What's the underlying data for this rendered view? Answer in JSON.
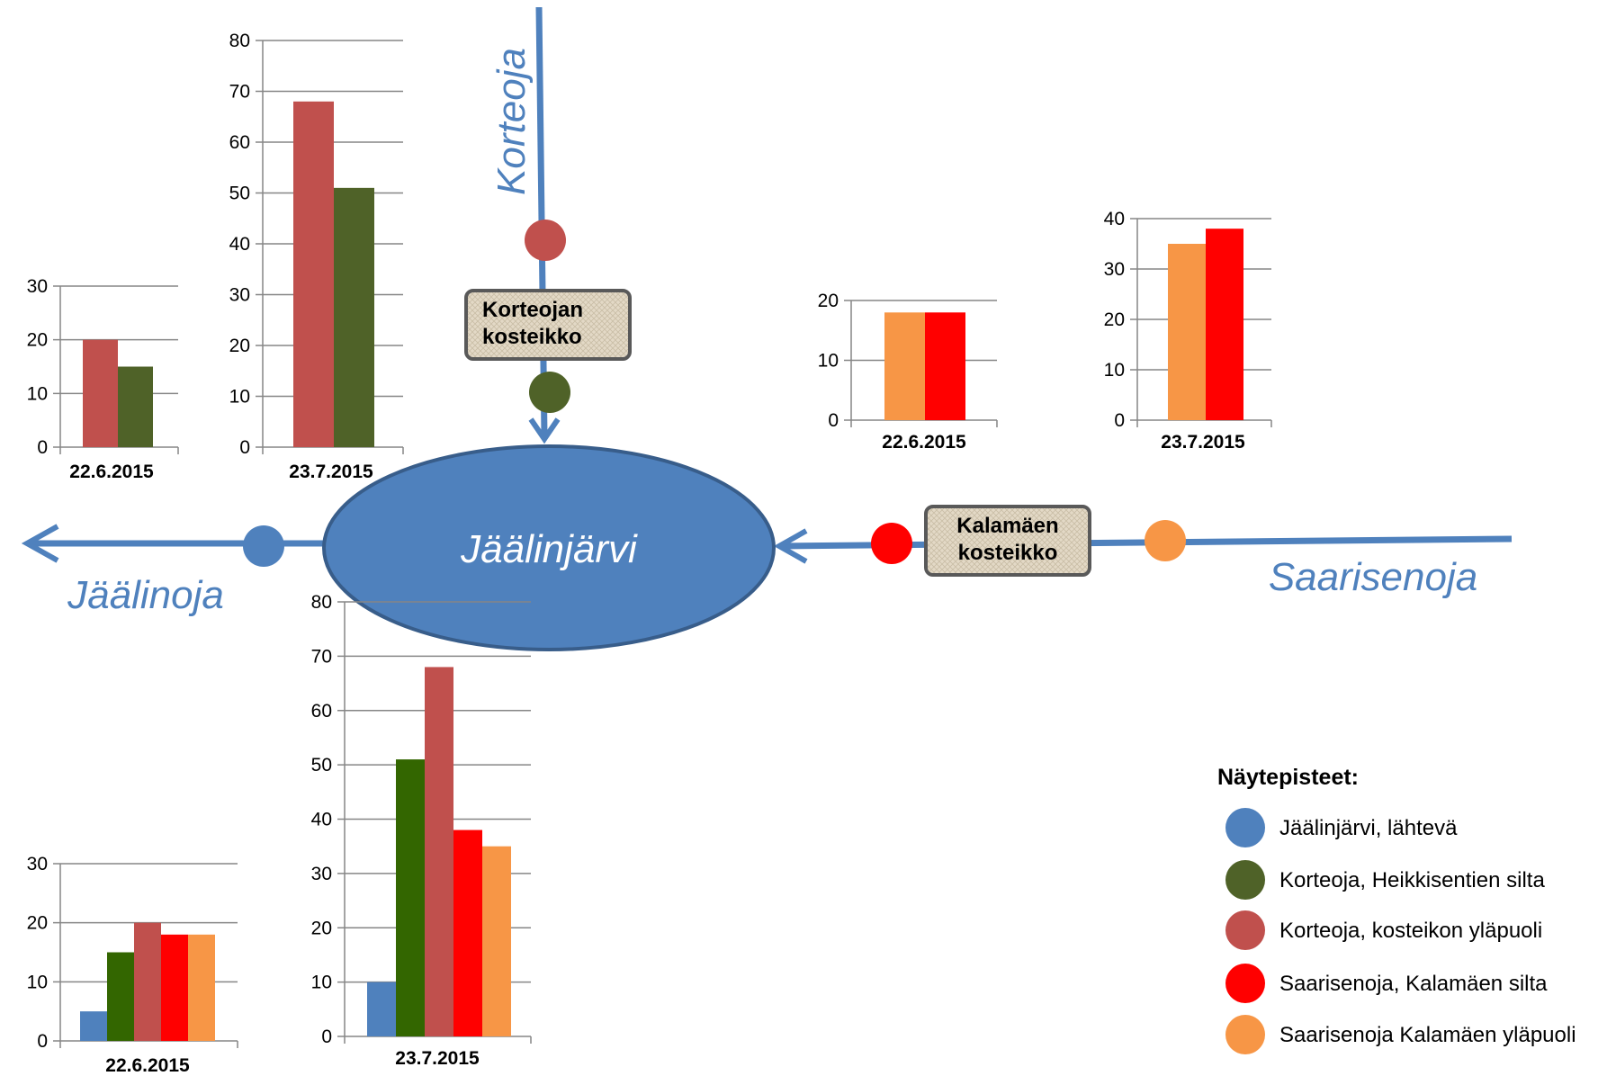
{
  "map": {
    "lake_label": "Jäälinjärvi",
    "rivers": {
      "korteoja": "Korteoja",
      "jaalinoja": "Jäälinoja",
      "saarisenoja": "Saarisenoja"
    },
    "wetlands": {
      "korteojan": [
        "Korteojan",
        "kosteikko"
      ],
      "kalamaen": [
        "Kalamäen",
        "kosteikko"
      ]
    },
    "colors": {
      "water": "#4f81bd",
      "lake_fill": "#4f81bd",
      "wetland_fill": "#e3d9c6",
      "wetland_border": "#595959"
    }
  },
  "legend": {
    "title": "Näytepisteet:",
    "items": [
      {
        "label": "Jäälinjärvi, lähtevä",
        "color": "#4f81bd"
      },
      {
        "label": "Korteoja, Heikkisentien silta",
        "color": "#4f6228"
      },
      {
        "label": "Korteoja, kosteikon yläpuoli",
        "color": "#c0504d"
      },
      {
        "label": "Saarisenoja, Kalamäen silta",
        "color": "#ff0000"
      },
      {
        "label": "Saarisenoja Kalamäen yläpuoli",
        "color": "#f79646"
      }
    ]
  },
  "chart_data": [
    {
      "type": "bar",
      "xlabel": "22.6.2015",
      "ylim": [
        0,
        30
      ],
      "yticks": [
        0,
        10,
        20,
        30
      ],
      "series": [
        {
          "values": [
            20
          ],
          "color": "#c0504d"
        },
        {
          "values": [
            15
          ],
          "color": "#4f6228"
        }
      ]
    },
    {
      "type": "bar",
      "xlabel": "23.7.2015",
      "ylim": [
        0,
        80
      ],
      "yticks": [
        0,
        10,
        20,
        30,
        40,
        50,
        60,
        70,
        80
      ],
      "series": [
        {
          "values": [
            68
          ],
          "color": "#c0504d"
        },
        {
          "values": [
            51
          ],
          "color": "#4f6228"
        }
      ]
    },
    {
      "type": "bar",
      "xlabel": "22.6.2015",
      "ylim": [
        0,
        20
      ],
      "yticks": [
        0,
        10,
        20
      ],
      "series": [
        {
          "values": [
            18
          ],
          "color": "#f79646"
        },
        {
          "values": [
            18
          ],
          "color": "#ff0000"
        }
      ]
    },
    {
      "type": "bar",
      "xlabel": "23.7.2015",
      "ylim": [
        0,
        40
      ],
      "yticks": [
        0,
        10,
        20,
        30,
        40
      ],
      "series": [
        {
          "values": [
            35
          ],
          "color": "#f79646"
        },
        {
          "values": [
            38
          ],
          "color": "#ff0000"
        }
      ]
    },
    {
      "type": "bar",
      "xlabel": "22.6.2015",
      "ylim": [
        0,
        30
      ],
      "yticks": [
        0,
        10,
        20,
        30
      ],
      "series": [
        {
          "values": [
            5
          ],
          "color": "#4f81bd"
        },
        {
          "values": [
            15
          ],
          "color": "#336600"
        },
        {
          "values": [
            20
          ],
          "color": "#c0504d"
        },
        {
          "values": [
            18
          ],
          "color": "#ff0000"
        },
        {
          "values": [
            18
          ],
          "color": "#f79646"
        }
      ]
    },
    {
      "type": "bar",
      "xlabel": "23.7.2015",
      "ylim": [
        0,
        80
      ],
      "yticks": [
        0,
        10,
        20,
        30,
        40,
        50,
        60,
        70,
        80
      ],
      "series": [
        {
          "values": [
            10
          ],
          "color": "#4f81bd"
        },
        {
          "values": [
            51
          ],
          "color": "#336600"
        },
        {
          "values": [
            68
          ],
          "color": "#c0504d"
        },
        {
          "values": [
            38
          ],
          "color": "#ff0000"
        },
        {
          "values": [
            35
          ],
          "color": "#f79646"
        }
      ]
    }
  ]
}
